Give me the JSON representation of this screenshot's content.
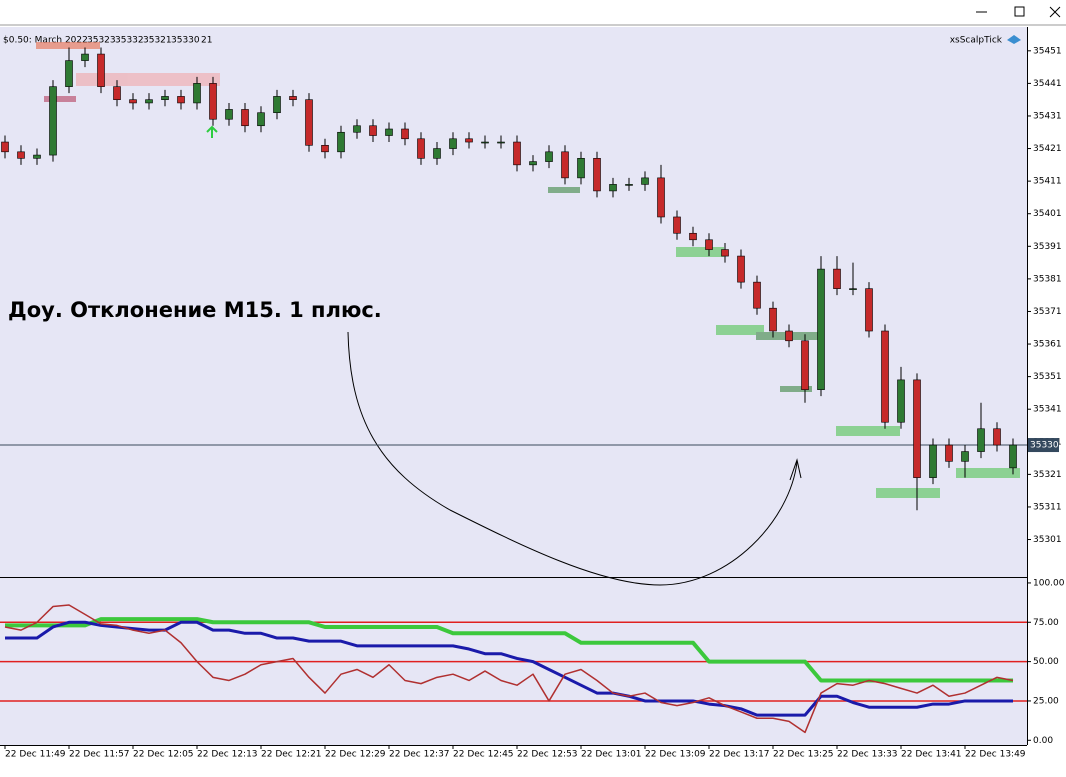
{
  "chart_data": [
    {
      "type": "candlestick",
      "symbol": "$0.50: March 2022",
      "tick_volume": 21,
      "indicator_name": "xsScalpTick",
      "annotation": "Доу. Отклонение M15. 1 плюс.",
      "current_price": 35330,
      "categories": [
        "22 Dec 11:49",
        null,
        null,
        null,
        "22 Dec 11:57",
        null,
        null,
        null,
        "22 Dec 12:05",
        null,
        null,
        null,
        "22 Dec 12:13",
        null,
        null,
        null,
        "22 Dec 12:21",
        null,
        null,
        null,
        "22 Dec 12:29",
        null,
        null,
        null,
        "22 Dec 12:37",
        null,
        null,
        null,
        "22 Dec 12:45",
        null,
        null,
        null,
        "22 Dec 12:53",
        null,
        null,
        null,
        "22 Dec 13:01",
        null,
        null,
        null,
        "22 Dec 13:09",
        null,
        null,
        null,
        "22 Dec 13:17",
        null,
        null,
        null,
        "22 Dec 13:25",
        null,
        null,
        null,
        "22 Dec 13:33",
        null,
        null,
        null,
        "22 Dec 13:41",
        null,
        null,
        null,
        "22 Dec 13:49",
        null,
        null,
        null
      ],
      "open": [
        35423,
        35420,
        35418,
        35419,
        35440,
        35448,
        35450,
        35440,
        35436,
        35435,
        35436,
        35437,
        35435,
        35441,
        35430,
        35433,
        35428,
        35432,
        35437,
        35436,
        35422,
        35420,
        35426,
        35428,
        35425,
        35427,
        35424,
        35418,
        35421,
        35424,
        35423,
        35423,
        35423,
        35416,
        35417,
        35420,
        35412,
        35418,
        35408,
        35410,
        35410,
        35412,
        35400,
        35395,
        35393,
        35390,
        35388,
        35380,
        35372,
        35365,
        35362,
        35347,
        35384,
        35378,
        35378,
        35365,
        35337,
        35350,
        35320,
        35330,
        35325,
        35328,
        35335,
        35323
      ],
      "high": [
        35425,
        35422,
        35421,
        35442,
        35452,
        35452,
        35452,
        35442,
        35438,
        35438,
        35439,
        35439,
        35443,
        35443,
        35435,
        35435,
        35434,
        35439,
        35439,
        35438,
        35424,
        35428,
        35430,
        35430,
        35429,
        35429,
        35426,
        35423,
        35426,
        35426,
        35425,
        35425,
        35425,
        35419,
        35422,
        35422,
        35420,
        35420,
        35412,
        35412,
        35414,
        35416,
        35402,
        35397,
        35395,
        35392,
        35390,
        35382,
        35374,
        35367,
        35364,
        35388,
        35388,
        35386,
        35380,
        35367,
        35354,
        35352,
        35332,
        35332,
        35330,
        35343,
        35337,
        35332
      ],
      "low": [
        35418,
        35416,
        35416,
        35417,
        35438,
        35446,
        35438,
        35434,
        35433,
        35433,
        35434,
        35433,
        35433,
        35428,
        35428,
        35426,
        35426,
        35430,
        35434,
        35420,
        35418,
        35418,
        35424,
        35423,
        35423,
        35422,
        35416,
        35416,
        35419,
        35421,
        35421,
        35421,
        35414,
        35414,
        35415,
        35410,
        35410,
        35406,
        35406,
        35408,
        35408,
        35398,
        35393,
        35391,
        35388,
        35386,
        35378,
        35370,
        35363,
        35360,
        35343,
        35345,
        35376,
        35376,
        35363,
        35335,
        35335,
        35310,
        35318,
        35323,
        35320,
        35326,
        35328,
        35321
      ],
      "close": [
        35420,
        35418,
        35419,
        35440,
        35448,
        35450,
        35440,
        35436,
        35435,
        35436,
        35437,
        35435,
        35441,
        35430,
        35433,
        35428,
        35432,
        35437,
        35436,
        35422,
        35420,
        35426,
        35428,
        35425,
        35427,
        35424,
        35418,
        35421,
        35424,
        35423,
        35423,
        35423,
        35416,
        35417,
        35420,
        35412,
        35418,
        35408,
        35410,
        35410,
        35412,
        35400,
        35395,
        35393,
        35390,
        35388,
        35380,
        35372,
        35365,
        35362,
        35347,
        35384,
        35378,
        35378,
        35365,
        35337,
        35350,
        35320,
        35330,
        35325,
        35328,
        35335,
        35330,
        35330
      ],
      "up_color": "#2f7a33",
      "down_color": "#c62a2a",
      "ylim": [
        35289.5,
        35458
      ],
      "yticks": [
        35301,
        35311,
        35321,
        35331,
        35341,
        35351,
        35361,
        35371,
        35381,
        35391,
        35401,
        35411,
        35421,
        35431,
        35441,
        35451
      ]
    },
    {
      "type": "line",
      "ylim": [
        -3,
        102.5
      ],
      "yticks": [
        {
          "value": 0,
          "label": "0.00"
        },
        {
          "value": 25,
          "label": "25.00"
        },
        {
          "value": 50,
          "label": "50.00"
        },
        {
          "value": 75,
          "label": "75.00"
        },
        {
          "value": 100,
          "label": "100.00"
        }
      ],
      "levels": [
        25,
        50,
        75
      ],
      "level_color": "#e02020",
      "series": [
        {
          "color": "#3cc83c",
          "values": [
            73,
            73,
            73,
            73,
            73,
            73,
            77,
            77,
            77,
            77,
            77,
            77,
            77,
            75,
            75,
            75,
            75,
            75,
            75,
            75,
            72,
            72,
            72,
            72,
            72,
            72,
            72,
            72,
            68,
            68,
            68,
            68,
            68,
            68,
            68,
            68,
            62,
            62,
            62,
            62,
            62,
            62,
            62,
            62,
            50,
            50,
            50,
            50,
            50,
            50,
            50,
            38,
            38,
            38,
            38,
            38,
            38,
            38,
            38,
            38,
            38,
            38,
            38,
            38
          ]
        },
        {
          "color": "#1a1aaa",
          "values": [
            65,
            65,
            65,
            72,
            75,
            75,
            73,
            72,
            71,
            70,
            70,
            75,
            75,
            70,
            70,
            68,
            68,
            65,
            65,
            63,
            63,
            63,
            60,
            60,
            60,
            60,
            60,
            60,
            60,
            58,
            55,
            55,
            52,
            50,
            45,
            40,
            35,
            30,
            30,
            28,
            25,
            25,
            25,
            25,
            23,
            22,
            20,
            16,
            16,
            16,
            16,
            28,
            28,
            24,
            21,
            21,
            21,
            21,
            23,
            23,
            25,
            25,
            25,
            25
          ]
        },
        {
          "color": "#b03030",
          "values": [
            72,
            70,
            75,
            85,
            86,
            80,
            74,
            73,
            70,
            68,
            70,
            62,
            50,
            40,
            38,
            42,
            48,
            50,
            52,
            40,
            30,
            42,
            45,
            40,
            48,
            38,
            36,
            40,
            42,
            38,
            44,
            38,
            35,
            42,
            25,
            42,
            45,
            38,
            30,
            28,
            30,
            24,
            22,
            24,
            27,
            22,
            18,
            14,
            14,
            12,
            5,
            30,
            36,
            35,
            38,
            36,
            33,
            30,
            35,
            28,
            30,
            35,
            40,
            38
          ]
        }
      ]
    }
  ]
}
